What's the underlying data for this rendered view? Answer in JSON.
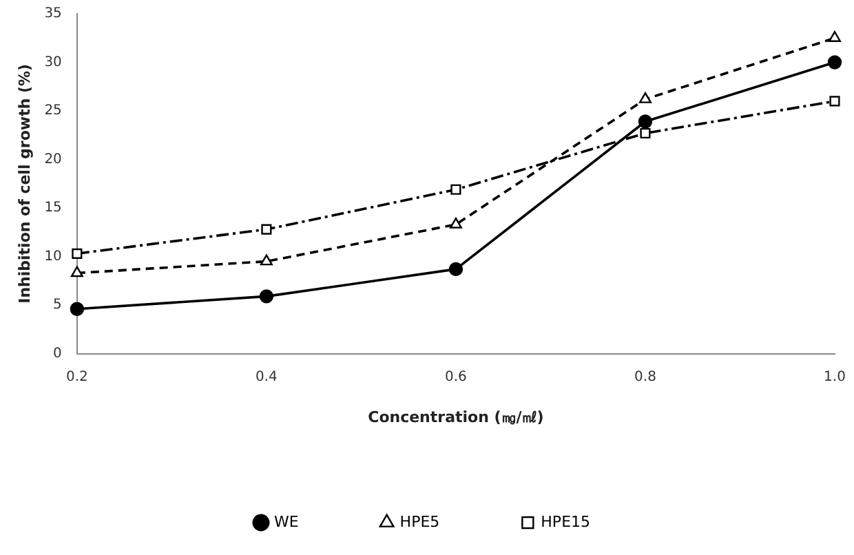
{
  "chart_data": {
    "type": "line",
    "xlabel": "Concentration (㎎/㎖)",
    "ylabel": "Inhibition of cell growth (%)",
    "categories": [
      "0.2",
      "0.4",
      "0.6",
      "0.8",
      "1.0"
    ],
    "series": [
      {
        "name": "WE",
        "color": "#000000",
        "values": [
          4.6,
          5.9,
          8.7,
          23.9,
          30.0
        ],
        "marker": "circle",
        "line_style": "solid"
      },
      {
        "name": "HPE5",
        "color": "#000000",
        "values": [
          8.3,
          9.5,
          13.3,
          26.2,
          32.5
        ],
        "marker": "triangle",
        "line_style": "dashed"
      },
      {
        "name": "HPE15",
        "color": "#000000",
        "values": [
          10.3,
          12.8,
          16.9,
          22.7,
          26.0
        ],
        "marker": "square",
        "line_style": "dashdot"
      }
    ],
    "ylim": [
      0,
      35
    ],
    "yticks": [
      0,
      5,
      10,
      15,
      20,
      25,
      30,
      35
    ],
    "grid": false,
    "legend": "bottom"
  }
}
